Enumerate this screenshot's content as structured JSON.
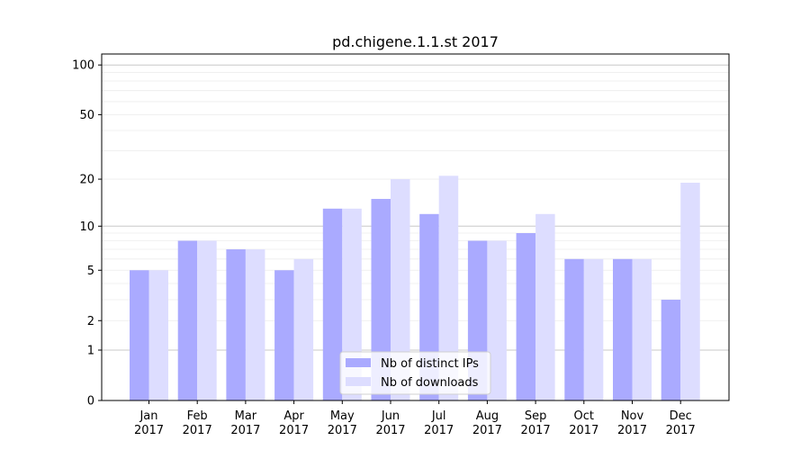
{
  "chart_data": {
    "type": "bar",
    "title": "pd.chigene.1.1.st 2017",
    "xlabel": "",
    "ylabel": "",
    "yscale": "log(1+y)",
    "ylim": [
      0,
      114
    ],
    "yticks": [
      0,
      1,
      2,
      5,
      10,
      20,
      50,
      100
    ],
    "ytick_labels": [
      "0",
      "1",
      "2",
      "5",
      "10",
      "20",
      "50",
      "100"
    ],
    "categories": [
      "Jan\n2017",
      "Feb\n2017",
      "Mar\n2017",
      "Apr\n2017",
      "May\n2017",
      "Jun\n2017",
      "Jul\n2017",
      "Aug\n2017",
      "Sep\n2017",
      "Oct\n2017",
      "Nov\n2017",
      "Dec\n2017"
    ],
    "series": [
      {
        "name": "Nb of distinct IPs",
        "color": "#aaaaff",
        "values": [
          5,
          8,
          7,
          5,
          13,
          15,
          12,
          8,
          9,
          6,
          6,
          3
        ]
      },
      {
        "name": "Nb of downloads",
        "color": "#ddddff",
        "values": [
          5,
          8,
          7,
          6,
          13,
          20,
          21,
          8,
          12,
          6,
          6,
          19
        ]
      }
    ],
    "grid": true,
    "legend": "bottom-center"
  }
}
